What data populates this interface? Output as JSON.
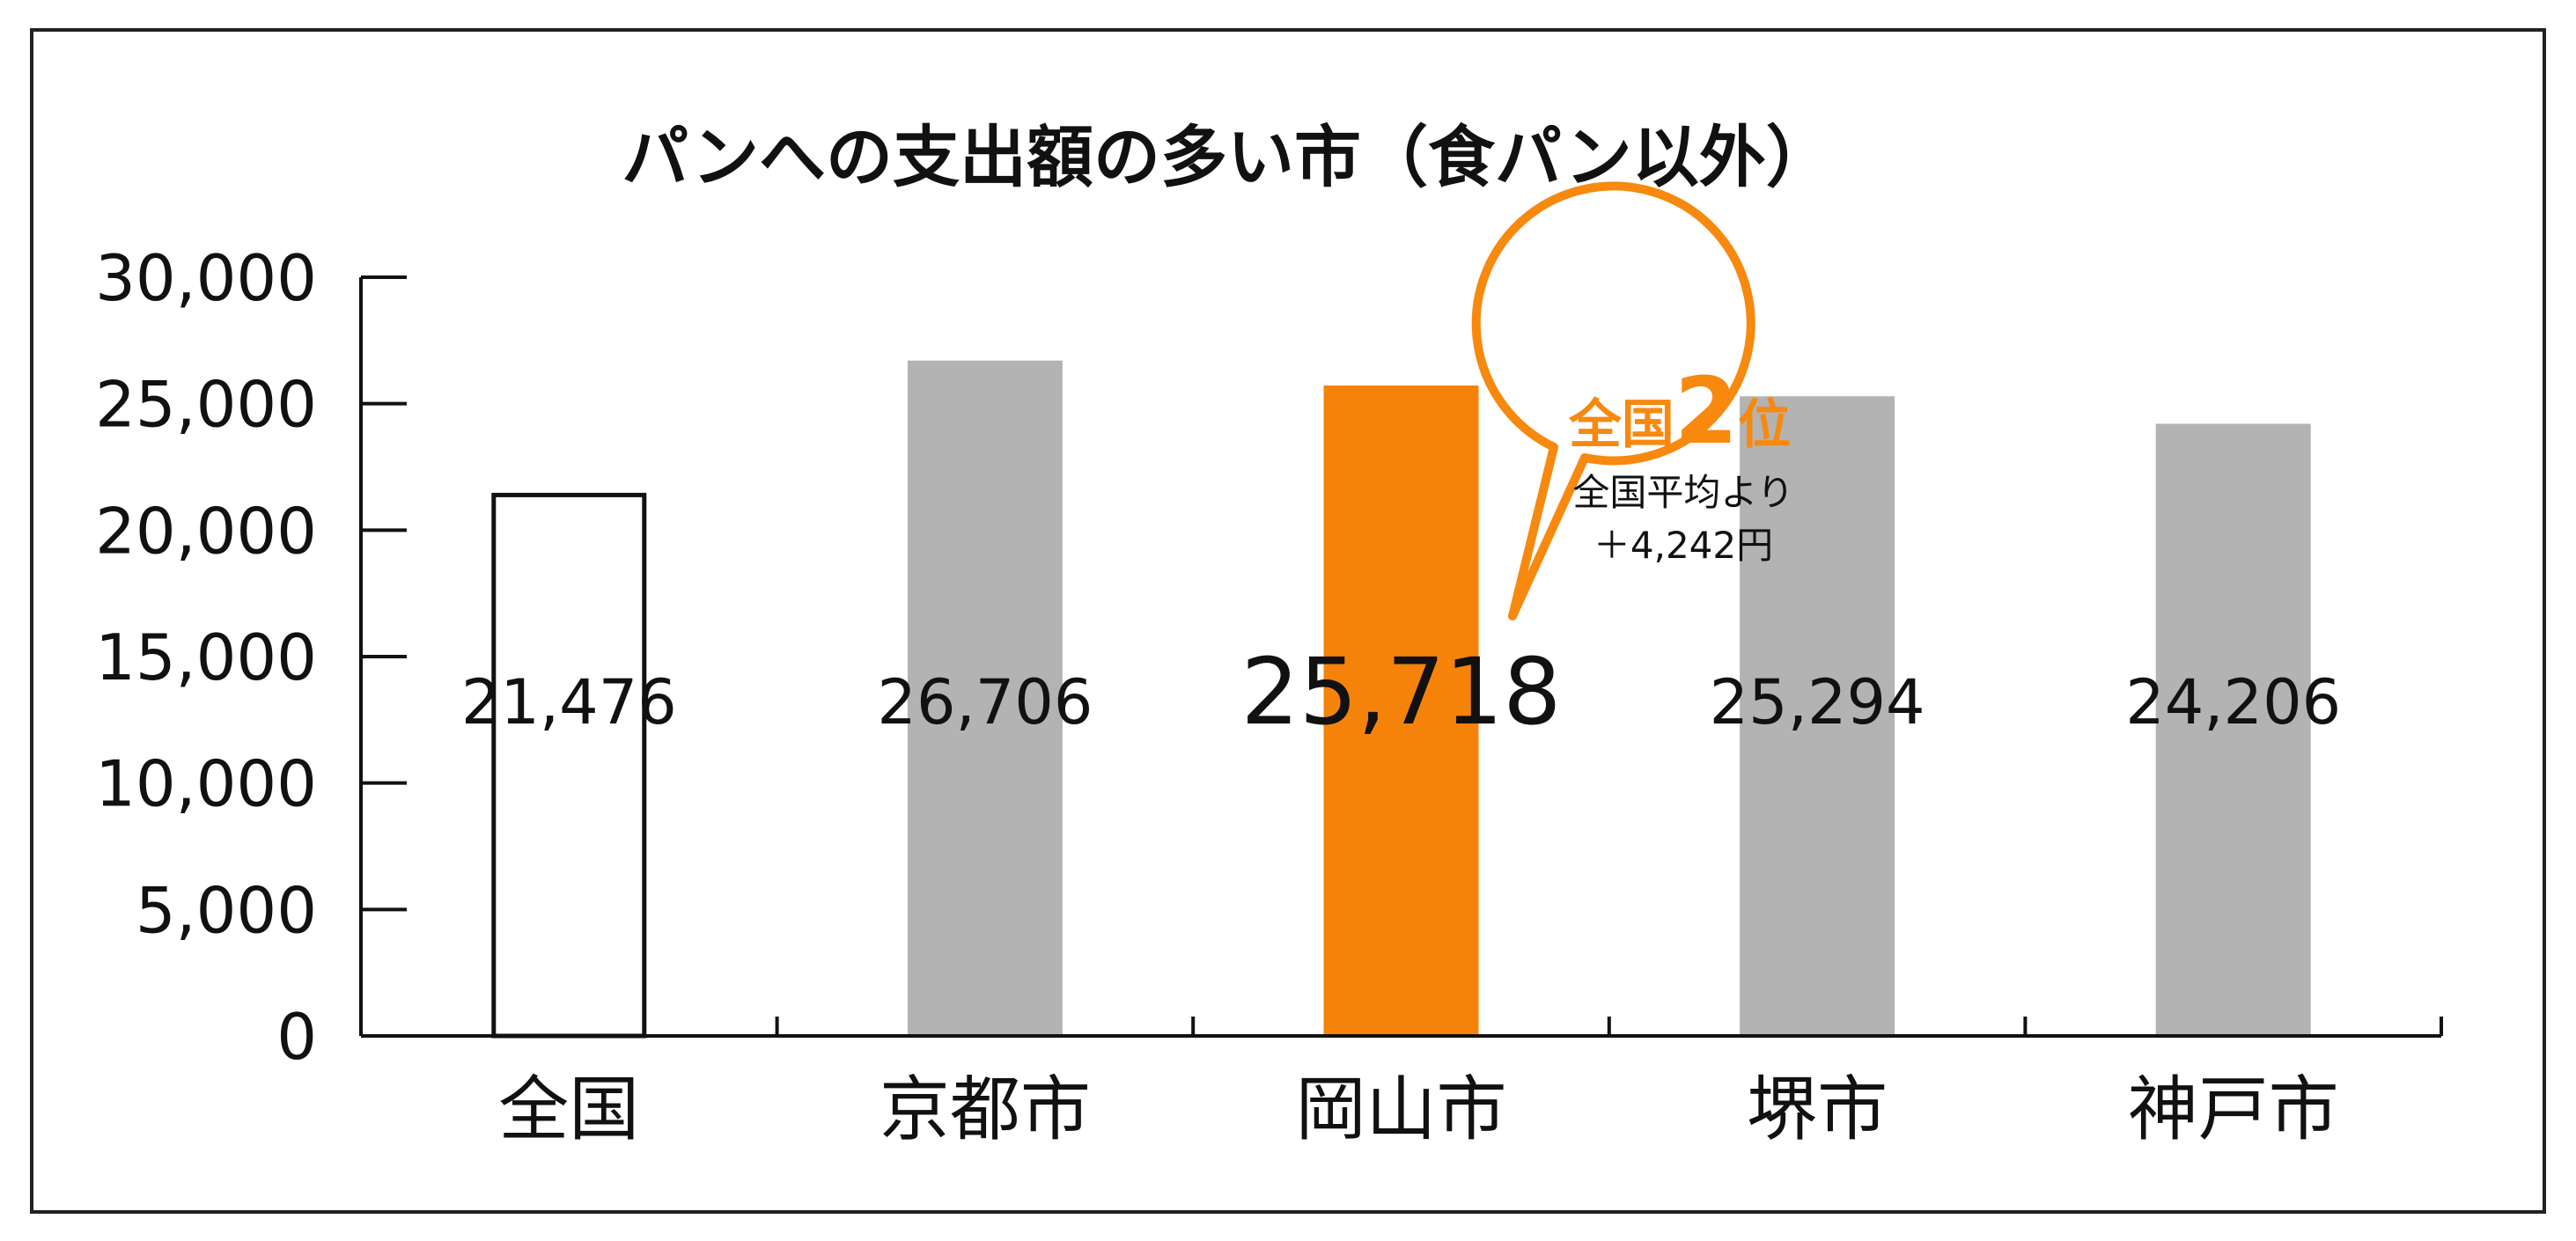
{
  "chart_data": {
    "type": "bar",
    "title": "パンへの支出額の多い市（食パン以外）",
    "categories": [
      "全国",
      "京都市",
      "岡山市",
      "堺市",
      "神戸市"
    ],
    "values": [
      21476,
      26706,
      25718,
      25294,
      24206
    ],
    "value_labels": [
      "21,476",
      "26,706",
      "25,718",
      "25,294",
      "24,206"
    ],
    "ylim": [
      0,
      30000
    ],
    "yticks": [
      0,
      5000,
      10000,
      15000,
      20000,
      25000,
      30000
    ],
    "ytick_labels": [
      "0",
      "5,000",
      "10,000",
      "15,000",
      "20,000",
      "25,000",
      "30,000"
    ],
    "xlabel": "",
    "ylabel": "",
    "grid": false,
    "bar_styles": [
      "outline",
      "gray",
      "highlight",
      "gray",
      "gray"
    ],
    "highlight_index": 2,
    "colors": {
      "gray": "#b3b3b3",
      "highlight": "#f5830a",
      "outline": "#111111",
      "callout": "#f7890f"
    },
    "annotation": {
      "rank_prefix": "全国",
      "rank_number": "2",
      "rank_suffix": "位",
      "line1": "全国平均より",
      "line2": "＋4,242円"
    }
  }
}
